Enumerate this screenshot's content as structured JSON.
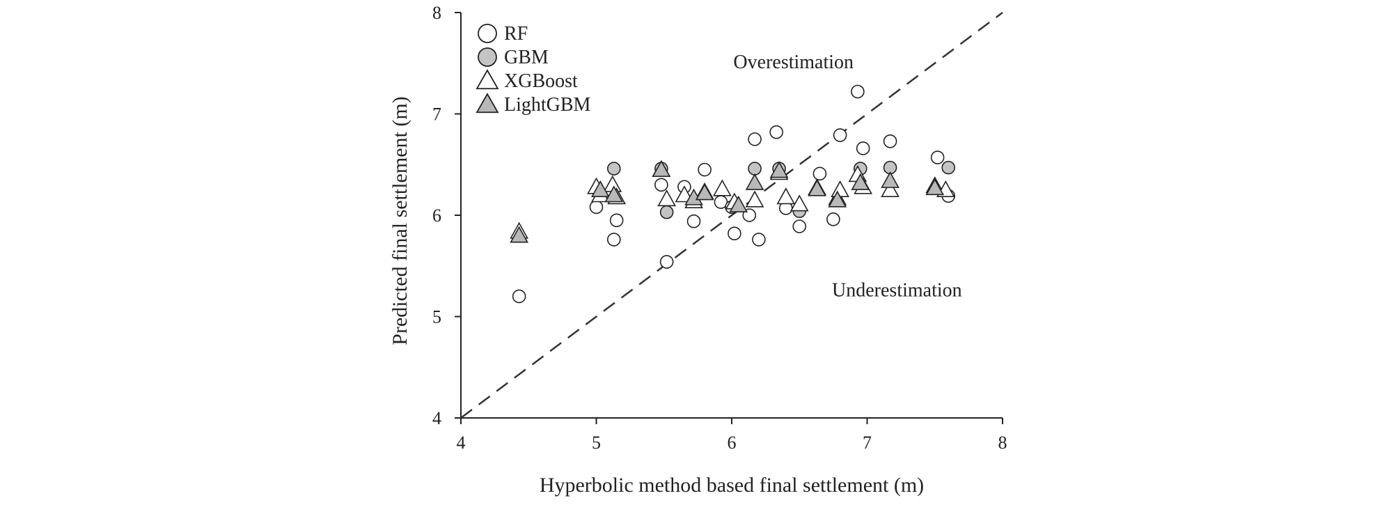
{
  "chart_data": {
    "type": "scatter",
    "xlabel": "Hyperbolic method based final settlement (m)",
    "ylabel": "Predicted final settlement (m)",
    "xlim": [
      4,
      8
    ],
    "ylim": [
      4,
      8
    ],
    "xticks": [
      "4",
      "5",
      "6",
      "7",
      "8"
    ],
    "yticks": [
      "4",
      "5",
      "6",
      "7",
      "8"
    ],
    "grid": false,
    "legend_position": "top-left",
    "reference_line": {
      "style": "dashed",
      "from": [
        4,
        4
      ],
      "to": [
        8,
        8
      ]
    },
    "annotations": [
      {
        "text": "Overestimation",
        "x": 6.9,
        "y": 7.45
      },
      {
        "text": "Underestimation",
        "x": 7.7,
        "y": 5.2
      }
    ],
    "series": [
      {
        "name": "RF",
        "marker": "circle",
        "fill": "#ffffff",
        "points": [
          [
            4.43,
            5.2
          ],
          [
            5.0,
            6.08
          ],
          [
            5.13,
            5.76
          ],
          [
            5.15,
            5.95
          ],
          [
            5.48,
            6.3
          ],
          [
            5.52,
            5.54
          ],
          [
            5.65,
            6.28
          ],
          [
            5.72,
            5.94
          ],
          [
            5.8,
            6.45
          ],
          [
            5.92,
            6.13
          ],
          [
            6.0,
            6.08
          ],
          [
            6.02,
            5.82
          ],
          [
            6.13,
            6.0
          ],
          [
            6.17,
            6.75
          ],
          [
            6.2,
            5.76
          ],
          [
            6.33,
            6.82
          ],
          [
            6.4,
            6.07
          ],
          [
            6.5,
            5.89
          ],
          [
            6.65,
            6.41
          ],
          [
            6.75,
            5.96
          ],
          [
            6.8,
            6.79
          ],
          [
            6.93,
            7.22
          ],
          [
            6.97,
            6.66
          ],
          [
            7.17,
            6.73
          ],
          [
            7.52,
            6.57
          ],
          [
            7.6,
            6.19
          ]
        ]
      },
      {
        "name": "GBM",
        "marker": "circle",
        "fill": "#c4c4c4",
        "points": [
          [
            5.13,
            6.46
          ],
          [
            5.48,
            6.46
          ],
          [
            5.52,
            6.03
          ],
          [
            6.17,
            6.46
          ],
          [
            6.35,
            6.46
          ],
          [
            6.5,
            6.04
          ],
          [
            6.95,
            6.46
          ],
          [
            7.17,
            6.47
          ],
          [
            7.6,
            6.47
          ]
        ]
      },
      {
        "name": "XGBoost",
        "marker": "triangle",
        "fill": "#ffffff",
        "points": [
          [
            4.43,
            5.84
          ],
          [
            5.0,
            6.28
          ],
          [
            5.03,
            6.2
          ],
          [
            5.12,
            6.3
          ],
          [
            5.15,
            6.18
          ],
          [
            5.48,
            6.45
          ],
          [
            5.52,
            6.16
          ],
          [
            5.65,
            6.2
          ],
          [
            5.72,
            6.14
          ],
          [
            5.8,
            6.23
          ],
          [
            5.93,
            6.26
          ],
          [
            6.02,
            6.13
          ],
          [
            6.17,
            6.15
          ],
          [
            6.35,
            6.42
          ],
          [
            6.4,
            6.18
          ],
          [
            6.5,
            6.11
          ],
          [
            6.63,
            6.27
          ],
          [
            6.78,
            6.17
          ],
          [
            6.8,
            6.25
          ],
          [
            6.93,
            6.4
          ],
          [
            6.97,
            6.28
          ],
          [
            7.17,
            6.25
          ],
          [
            7.5,
            6.29
          ],
          [
            7.58,
            6.25
          ]
        ]
      },
      {
        "name": "LightGBM",
        "marker": "triangle",
        "fill": "#b8b8b8",
        "points": [
          [
            4.43,
            5.8
          ],
          [
            5.03,
            6.25
          ],
          [
            5.13,
            6.2
          ],
          [
            5.48,
            6.45
          ],
          [
            5.72,
            6.17
          ],
          [
            5.8,
            6.22
          ],
          [
            6.05,
            6.1
          ],
          [
            6.17,
            6.32
          ],
          [
            6.35,
            6.44
          ],
          [
            6.63,
            6.26
          ],
          [
            6.78,
            6.15
          ],
          [
            6.95,
            6.32
          ],
          [
            7.17,
            6.34
          ],
          [
            7.5,
            6.27
          ]
        ]
      }
    ]
  }
}
